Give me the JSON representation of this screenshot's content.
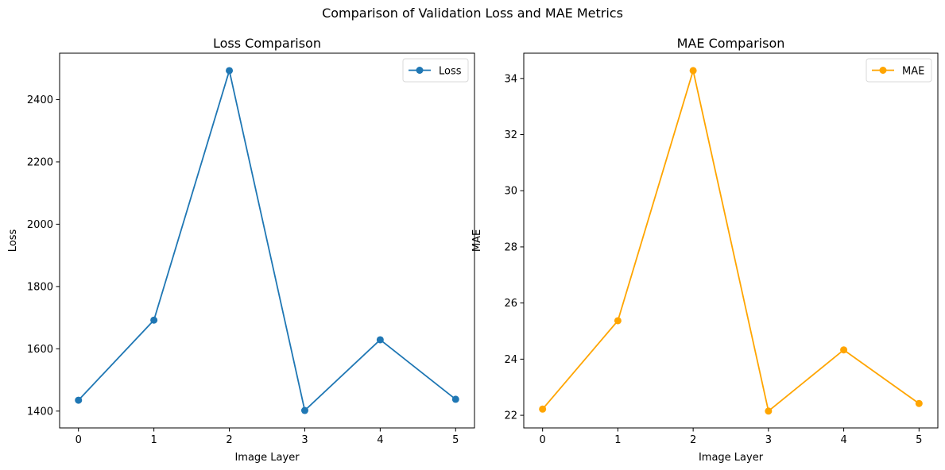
{
  "figure": {
    "suptitle": "Comparison of Validation Loss and MAE Metrics"
  },
  "chart_data": [
    {
      "type": "line",
      "title": "Loss Comparison",
      "xlabel": "Image Layer",
      "ylabel": "Loss",
      "x": [
        0,
        1,
        2,
        3,
        4,
        5
      ],
      "series": [
        {
          "name": "Loss",
          "values": [
            1435,
            1692,
            2493,
            1402,
            1629,
            1438
          ],
          "color": "#1f77b4"
        }
      ],
      "xlim": [
        -0.25,
        5.25
      ],
      "ylim": [
        1346,
        2549
      ],
      "xticks": [
        0,
        1,
        2,
        3,
        4,
        5
      ],
      "yticks": [
        1400,
        1600,
        1800,
        2000,
        2200,
        2400
      ],
      "legend": "upper right",
      "grid": false
    },
    {
      "type": "line",
      "title": "MAE Comparison",
      "xlabel": "Image Layer",
      "ylabel": "MAE",
      "x": [
        0,
        1,
        2,
        3,
        4,
        5
      ],
      "series": [
        {
          "name": "MAE",
          "values": [
            22.22,
            25.37,
            34.28,
            22.15,
            24.33,
            22.42
          ],
          "color": "#ffa500"
        }
      ],
      "xlim": [
        -0.25,
        5.25
      ],
      "ylim": [
        21.55,
        34.9
      ],
      "xticks": [
        0,
        1,
        2,
        3,
        4,
        5
      ],
      "yticks": [
        22,
        24,
        26,
        28,
        30,
        32,
        34
      ],
      "legend": "upper right",
      "grid": false
    }
  ]
}
